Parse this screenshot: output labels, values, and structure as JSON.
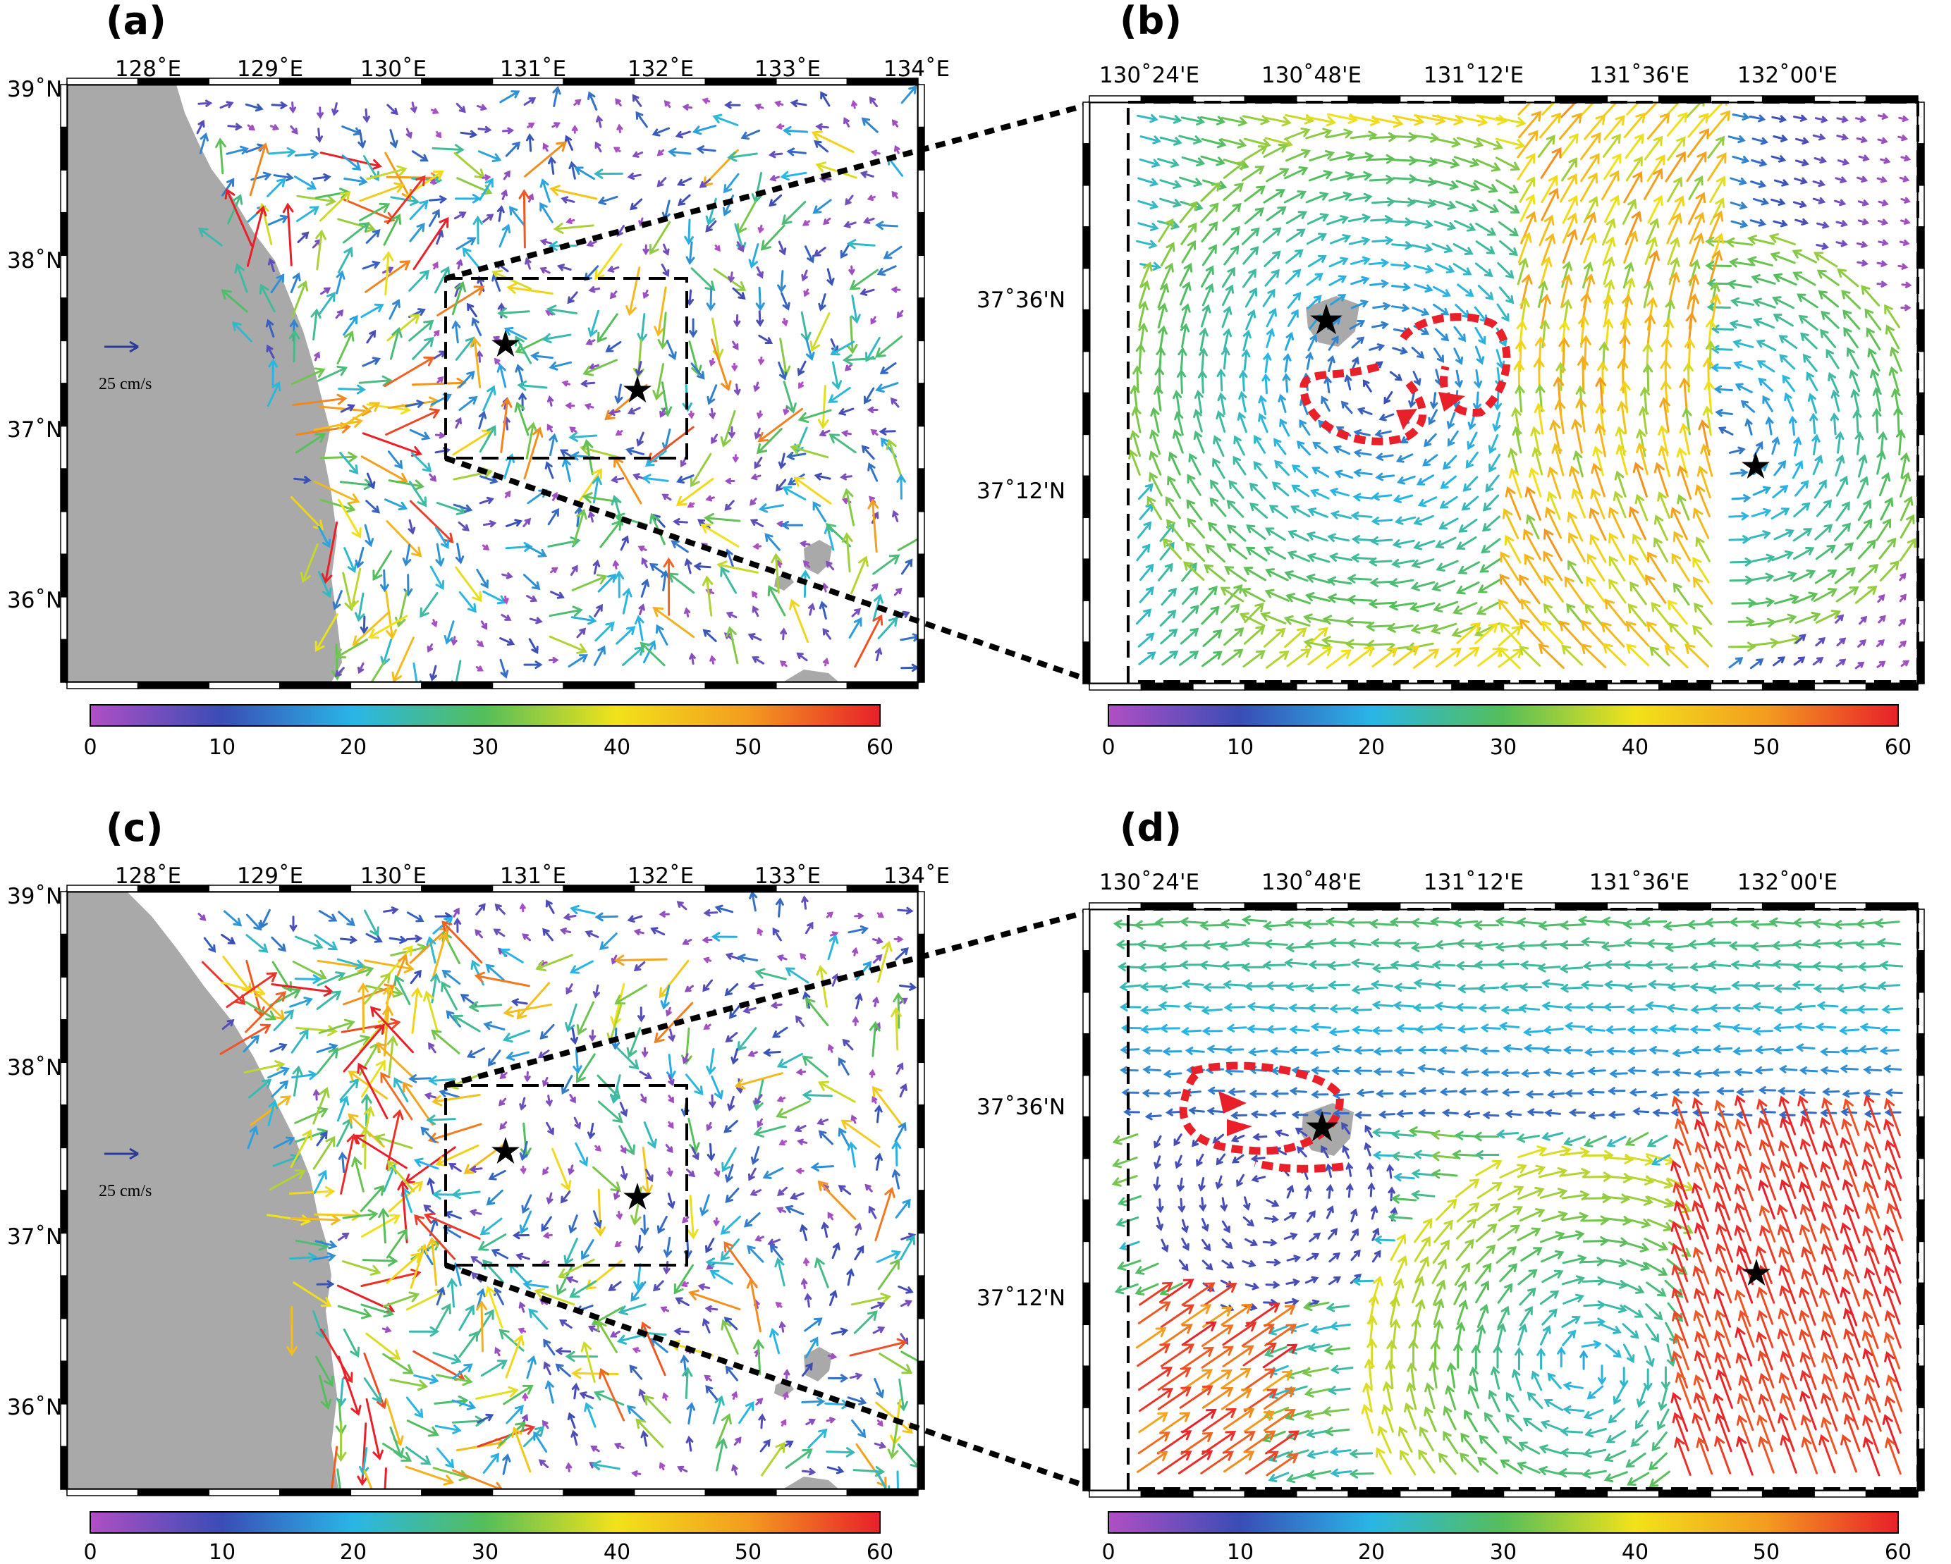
{
  "panels": [
    {
      "id": "a",
      "label": "(a)",
      "lon_ticks": [
        "128˚E",
        "129˚E",
        "130˚E",
        "131˚E",
        "132˚E",
        "133˚E",
        "134˚E"
      ],
      "lat_ticks": [
        "39˚N",
        "38˚N",
        "37˚N",
        "36˚N"
      ],
      "scale_label": "25 cm/s",
      "colorbar_ticks": [
        "0",
        "10",
        "20",
        "30",
        "40",
        "50",
        "60"
      ]
    },
    {
      "id": "b",
      "label": "(b)",
      "lon_ticks": [
        "130˚24'E",
        "130˚48'E",
        "131˚12'E",
        "131˚36'E",
        "132˚00'E"
      ],
      "lat_ticks": [
        "37˚36'N",
        "37˚12'N"
      ],
      "colorbar_ticks": [
        "0",
        "10",
        "20",
        "30",
        "40",
        "50",
        "60"
      ]
    },
    {
      "id": "c",
      "label": "(c)",
      "lon_ticks": [
        "128˚E",
        "129˚E",
        "130˚E",
        "131˚E",
        "132˚E",
        "133˚E",
        "134˚E"
      ],
      "lat_ticks": [
        "39˚N",
        "38˚N",
        "37˚N",
        "36˚N"
      ],
      "scale_label": "25 cm/s",
      "colorbar_ticks": [
        "0",
        "10",
        "20",
        "30",
        "40",
        "50",
        "60"
      ]
    },
    {
      "id": "d",
      "label": "(d)",
      "lon_ticks": [
        "130˚24'E",
        "130˚48'E",
        "131˚12'E",
        "131˚36'E",
        "132˚00'E"
      ],
      "lat_ticks": [
        "37˚36'N",
        "37˚12'N"
      ],
      "colorbar_ticks": [
        "0",
        "10",
        "20",
        "30",
        "40",
        "50",
        "60"
      ]
    }
  ],
  "colormap": [
    "#b04fc4",
    "#3a4db6",
    "#29b6e6",
    "#55be5a",
    "#f2e21a",
    "#f39b1f",
    "#e8202a"
  ],
  "colors": {
    "land": "#a9a9a9",
    "eddy_outline": "#e8202a",
    "star": "#000000"
  },
  "icons": [
    "star-icon",
    "arrow-icon"
  ]
}
